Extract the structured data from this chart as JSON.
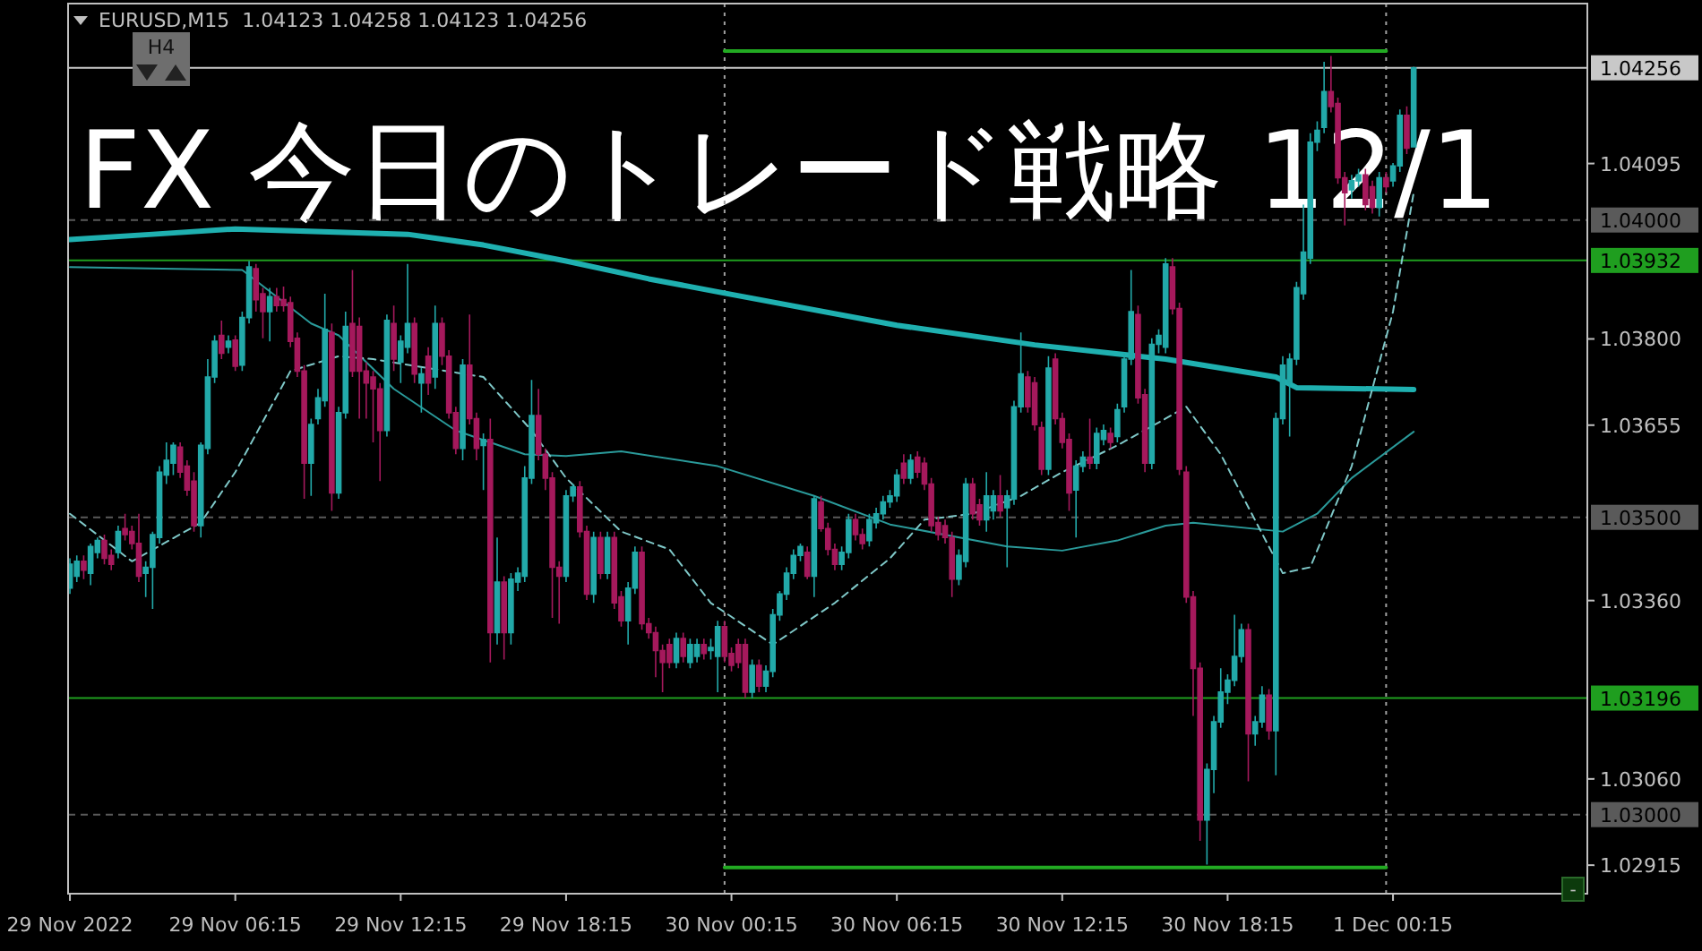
{
  "chart_data": {
    "type": "candlestick",
    "title": "FX 今日のトレード戦略 12/1",
    "annotations": [
      "EURUSD,M15  1.04123 1.04258 1.04123 1.04256",
      "H4",
      "-"
    ],
    "colors": [
      "#22a9a9",
      "#22a9a9",
      "#a5195c",
      "#22a9a9",
      "#22a9a9",
      "#a5195c",
      "#a5195c",
      "#22a9a9",
      "#a5195c",
      "#a5195c",
      "#a5195c",
      "#22a9a9",
      "#22a9a9",
      "#22a9a9",
      "#22a9a9",
      "#22a9a9",
      "#a5195c",
      "#a5195c",
      "#a5195c",
      "#22a9a9",
      "#22a9a9",
      "#22a9a9",
      "#a5195c",
      "#22a9a9",
      "#a5195c",
      "#22a9a9",
      "#22a9a9",
      "#a5195c",
      "#a5195c",
      "#22a9a9",
      "#a5195c",
      "#a5195c",
      "#a5195c",
      "#a5195c",
      "#a5195c",
      "#22a9a9",
      "#22a9a9",
      "#22a9a9",
      "#a5195c",
      "#22a9a9",
      "#22a9a9",
      "#a5195c",
      "#a5195c",
      "#a5195c",
      "#a5195c",
      "#a5195c",
      "#22a9a9",
      "#a5195c",
      "#22a9a9",
      "#22a9a9",
      "#a5195c",
      "#22a9a9",
      "#a5195c",
      "#22a9a9",
      "#a5195c",
      "#a5195c",
      "#a5195c",
      "#22a9a9",
      "#a5195c",
      "#a5195c",
      "#22a9a9",
      "#a5195c",
      "#22a9a9",
      "#a5195c",
      "#22a9a9",
      "#22a9a9",
      "#22a9a9",
      "#22a9a9",
      "#a5195c",
      "#a5195c",
      "#a5195c",
      "#a5195c",
      "#22a9a9",
      "#22a9a9",
      "#a5195c",
      "#a5195c",
      "#22a9a9",
      "#a5195c",
      "#22a9a9",
      "#a5195c",
      "#a5195c",
      "#22a9a9",
      "#22a9a9",
      "#a5195c",
      "#a5195c",
      "#a5195c",
      "#a5195c",
      "#a5195c",
      "#22a9a9",
      "#a5195c",
      "#22a9a9",
      "#22a9a9",
      "#a5195c",
      "#22a9a9",
      "#22a9a9",
      "#a5195c",
      "#a5195c",
      "#a5195c",
      "#a5195c",
      "#22a9a9",
      "#a5195c",
      "#22a9a9",
      "#22a9a9",
      "#22a9a9",
      "#22a9a9",
      "#22a9a9",
      "#22a9a9",
      "#a5195c",
      "#22a9a9",
      "#a5195c",
      "#a5195c",
      "#a5195c",
      "#22a9a9",
      "#22a9a9",
      "#a5195c",
      "#a5195c",
      "#22a9a9",
      "#22a9a9",
      "#22a9a9",
      "#22a9a9",
      "#22a9a9",
      "#a5195c",
      "#22a9a9",
      "#a5195c",
      "#a5195c",
      "#a5195c",
      "#a5195c",
      "#a5195c",
      "#a5195c",
      "#22a9a9",
      "#22a9a9",
      "#a5195c",
      "#a5195c",
      "#22a9a9",
      "#22a9a9",
      "#a5195c",
      "#22a9a9",
      "#22a9a9",
      "#22a9a9",
      "#a5195c",
      "#a5195c",
      "#a5195c",
      "#22a9a9",
      "#a5195c",
      "#a5195c",
      "#a5195c",
      "#22a9a9",
      "#22a9a9",
      "#a5195c",
      "#22a9a9",
      "#22a9a9",
      "#a5195c",
      "#22a9a9",
      "#22a9a9",
      "#22a9a9",
      "#a5195c",
      "#a5195c",
      "#22a9a9",
      "#22a9a9",
      "#22a9a9",
      "#a5195c",
      "#a5195c",
      "#a5195c",
      "#a5195c",
      "#a5195c",
      "#22a9a9",
      "#22a9a9",
      "#22a9a9",
      "#22a9a9",
      "#22a9a9",
      "#22a9a9",
      "#a5195c",
      "#22a9a9",
      "#22a9a9",
      "#a5195c",
      "#22a9a9",
      "#22a9a9",
      "#22a9a9",
      "#22a9a9",
      "#22a9a9",
      "#22a9a9",
      "#22a9a9",
      "#22a9a9",
      "#a5195c",
      "#a5195c",
      "#a5195c",
      "#22a9a9",
      "#22a9a9",
      "#a5195c",
      "#a5195c",
      "#22a9a9",
      "#a5195c",
      "#22a9a9",
      "#22a9a9",
      "#a5195c",
      "#22a9a9"
    ],
    "xlim": [
      "2022-11-29T00:11",
      "2022-12-01T07:18"
    ],
    "xticks": [
      {
        "value": "2022-11-29T00:15",
        "label": "29 Nov 2022"
      },
      {
        "value": "2022-11-29T06:15",
        "label": "29 Nov 06:15"
      },
      {
        "value": "2022-11-29T12:15",
        "label": "29 Nov 12:15"
      },
      {
        "value": "2022-11-29T18:15",
        "label": "29 Nov 18:15"
      },
      {
        "value": "2022-11-30T00:15",
        "label": "30 Nov 00:15"
      },
      {
        "value": "2022-11-30T06:15",
        "label": "30 Nov 06:15"
      },
      {
        "value": "2022-11-30T12:15",
        "label": "30 Nov 12:15"
      },
      {
        "value": "2022-11-30T18:15",
        "label": "30 Nov 18:15"
      },
      {
        "value": "2022-12-01T00:15",
        "label": "1 Dec 00:15"
      }
    ],
    "ylim": [
      1.02867,
      1.04364
    ],
    "yticks": [
      {
        "value": 1.04095,
        "label": "1.04095"
      },
      {
        "value": 1.038,
        "label": "1.03800"
      },
      {
        "value": 1.03655,
        "label": "1.03655"
      },
      {
        "value": 1.0336,
        "label": "1.03360"
      },
      {
        "value": 1.0306,
        "label": "1.03060"
      },
      {
        "value": 1.02915,
        "label": "1.02915"
      }
    ],
    "ref_lines": [
      {
        "axis": "x",
        "value": "2022-11-30T00:00",
        "color": "#a0a0a0",
        "line_style": "dotted"
      },
      {
        "axis": "x",
        "value": "2022-12-01T00:00",
        "color": "#a0a0a0",
        "line_style": "dotted"
      },
      {
        "axis": "y",
        "value": 1.04,
        "label": "1.04000",
        "color": "#5a5a5a",
        "line_style": "dashed"
      },
      {
        "axis": "y",
        "value": 1.035,
        "label": "1.03500",
        "color": "#5a5a5a",
        "line_style": "dashed"
      },
      {
        "axis": "y",
        "value": 1.03,
        "label": "1.03000",
        "color": "#5a5a5a",
        "line_style": "dashed"
      },
      {
        "axis": "y",
        "value": 1.03932,
        "label": "1.03932",
        "color": "#1f9e1f",
        "line_style": "solid"
      },
      {
        "axis": "y",
        "value": 1.03196,
        "label": "1.03196",
        "color": "#1f9e1f",
        "line_style": "solid"
      },
      {
        "axis": "y",
        "value": 1.04256,
        "label": "1.04256",
        "color": "#c8c8c8",
        "line_style": "solid"
      }
    ],
    "series": [
      {
        "type": "line",
        "color": "#1fb0b0",
        "x": [
          "2022-11-29T00:15",
          "2022-11-29T03:15",
          "2022-11-29T06:15",
          "2022-11-29T12:30",
          "2022-11-29T15:15",
          "2022-11-29T18:15",
          "2022-11-29T21:15",
          "2022-11-30T00:00",
          "2022-11-30T06:15",
          "2022-11-30T11:15",
          "2022-11-30T16:00",
          "2022-11-30T20:00",
          "2022-11-30T20:45",
          "2022-12-01T01:00"
        ],
        "values": [
          1.03967,
          1.03976,
          1.03985,
          1.03976,
          1.03958,
          1.03931,
          1.03901,
          1.03877,
          1.03823,
          1.0379,
          1.03766,
          1.03736,
          1.03718,
          1.03715
        ]
      },
      {
        "type": "line",
        "color": "#2a9a9a",
        "x": [
          "2022-11-29T00:15",
          "2022-11-29T06:30",
          "2022-11-29T09:00",
          "2022-11-29T10:00",
          "2022-11-29T12:00",
          "2022-11-29T14:15",
          "2022-11-29T16:45",
          "2022-11-29T18:15",
          "2022-11-29T20:15",
          "2022-11-29T23:45",
          "2022-11-30T03:15",
          "2022-11-30T06:00",
          "2022-11-30T10:15",
          "2022-11-30T12:15",
          "2022-11-30T14:15",
          "2022-11-30T16:00",
          "2022-11-30T17:00",
          "2022-11-30T20:15",
          "2022-11-30T21:30",
          "2022-11-30T22:45",
          "2022-12-01T01:00"
        ],
        "values": [
          1.03921,
          1.03916,
          1.03826,
          1.03806,
          1.03716,
          1.03646,
          1.03606,
          1.03603,
          1.03611,
          1.03586,
          1.03536,
          1.03488,
          1.03451,
          1.03444,
          1.03461,
          1.03486,
          1.03491,
          1.03476,
          1.03506,
          1.03566,
          1.03644
        ]
      },
      {
        "type": "line",
        "color": "#7fc8c8",
        "line_style": "dashed",
        "x": [
          "2022-11-29T00:15",
          "2022-11-29T02:30",
          "2022-11-29T05:00",
          "2022-11-29T06:15",
          "2022-11-29T08:15",
          "2022-11-29T10:00",
          "2022-11-29T11:15",
          "2022-11-29T15:15",
          "2022-11-29T17:00",
          "2022-11-29T18:15",
          "2022-11-29T20:15",
          "2022-11-29T22:00",
          "2022-11-29T23:30",
          "2022-11-30T01:45",
          "2022-11-30T04:00",
          "2022-11-30T06:00",
          "2022-11-30T07:15",
          "2022-11-30T09:00",
          "2022-11-30T10:45",
          "2022-11-30T12:15",
          "2022-11-30T14:15",
          "2022-11-30T16:00",
          "2022-11-30T16:45",
          "2022-11-30T18:00",
          "2022-11-30T20:15",
          "2022-11-30T21:15",
          "2022-11-30T22:45",
          "2022-12-01T00:15",
          "2022-12-01T01:00"
        ],
        "values": [
          1.03506,
          1.03426,
          1.03491,
          1.03576,
          1.03746,
          1.03771,
          1.03766,
          1.03736,
          1.03646,
          1.03566,
          1.03476,
          1.03446,
          1.03356,
          1.03286,
          1.03356,
          1.03431,
          1.03496,
          1.03506,
          1.03536,
          1.03576,
          1.03621,
          1.03666,
          1.03686,
          1.03606,
          1.03406,
          1.03416,
          1.03586,
          1.03846,
          1.04046
        ]
      },
      {
        "type": "line",
        "color": "#22aa22",
        "x": [
          "2022-11-30T00:00",
          "2022-12-01T00:00"
        ],
        "values": [
          1.04284,
          1.04284
        ]
      },
      {
        "type": "line",
        "color": "#22aa22",
        "x": [
          "2022-11-30T00:00",
          "2022-12-01T00:00"
        ],
        "values": [
          1.02911,
          1.02911
        ]
      }
    ],
    "x": [
      "2022-11-29T00:15",
      "2022-11-29T00:30",
      "2022-11-29T00:45",
      "2022-11-29T01:00",
      "2022-11-29T01:15",
      "2022-11-29T01:30",
      "2022-11-29T01:45",
      "2022-11-29T02:00",
      "2022-11-29T02:15",
      "2022-11-29T02:30",
      "2022-11-29T02:45",
      "2022-11-29T03:00",
      "2022-11-29T03:15",
      "2022-11-29T03:30",
      "2022-11-29T03:45",
      "2022-11-29T04:00",
      "2022-11-29T04:15",
      "2022-11-29T04:30",
      "2022-11-29T04:45",
      "2022-11-29T05:00",
      "2022-11-29T05:15",
      "2022-11-29T05:30",
      "2022-11-29T05:45",
      "2022-11-29T06:00",
      "2022-11-29T06:15",
      "2022-11-29T06:30",
      "2022-11-29T06:45",
      "2022-11-29T07:00",
      "2022-11-29T07:15",
      "2022-11-29T07:30",
      "2022-11-29T07:45",
      "2022-11-29T08:00",
      "2022-11-29T08:15",
      "2022-11-29T08:30",
      "2022-11-29T08:45",
      "2022-11-29T09:00",
      "2022-11-29T09:15",
      "2022-11-29T09:30",
      "2022-11-29T09:45",
      "2022-11-29T10:00",
      "2022-11-29T10:15",
      "2022-11-29T10:30",
      "2022-11-29T10:45",
      "2022-11-29T11:00",
      "2022-11-29T11:15",
      "2022-11-29T11:30",
      "2022-11-29T11:45",
      "2022-11-29T12:00",
      "2022-11-29T12:15",
      "2022-11-29T12:30",
      "2022-11-29T12:45",
      "2022-11-29T13:00",
      "2022-11-29T13:15",
      "2022-11-29T13:30",
      "2022-11-29T13:45",
      "2022-11-29T14:00",
      "2022-11-29T14:15",
      "2022-11-29T14:30",
      "2022-11-29T14:45",
      "2022-11-29T15:00",
      "2022-11-29T15:15",
      "2022-11-29T15:30",
      "2022-11-29T15:45",
      "2022-11-29T16:00",
      "2022-11-29T16:15",
      "2022-11-29T16:30",
      "2022-11-29T16:45",
      "2022-11-29T17:00",
      "2022-11-29T17:15",
      "2022-11-29T17:30",
      "2022-11-29T17:45",
      "2022-11-29T18:00",
      "2022-11-29T18:15",
      "2022-11-29T18:30",
      "2022-11-29T18:45",
      "2022-11-29T19:00",
      "2022-11-29T19:15",
      "2022-11-29T19:30",
      "2022-11-29T19:45",
      "2022-11-29T20:00",
      "2022-11-29T20:15",
      "2022-11-29T20:30",
      "2022-11-29T20:45",
      "2022-11-29T21:00",
      "2022-11-29T21:15",
      "2022-11-29T21:30",
      "2022-11-29T21:45",
      "2022-11-29T22:00",
      "2022-11-29T22:15",
      "2022-11-29T22:30",
      "2022-11-29T22:45",
      "2022-11-29T23:00",
      "2022-11-29T23:15",
      "2022-11-29T23:30",
      "2022-11-29T23:45",
      "2022-11-30T00:00",
      "2022-11-30T00:15",
      "2022-11-30T00:30",
      "2022-11-30T00:45",
      "2022-11-30T01:00",
      "2022-11-30T01:15",
      "2022-11-30T01:30",
      "2022-11-30T01:45",
      "2022-11-30T02:00",
      "2022-11-30T02:15",
      "2022-11-30T02:30",
      "2022-11-30T02:45",
      "2022-11-30T03:00",
      "2022-11-30T03:15",
      "2022-11-30T03:30",
      "2022-11-30T03:45",
      "2022-11-30T04:00",
      "2022-11-30T04:15",
      "2022-11-30T04:30",
      "2022-11-30T04:45",
      "2022-11-30T05:00",
      "2022-11-30T05:15",
      "2022-11-30T05:30",
      "2022-11-30T05:45",
      "2022-11-30T06:00",
      "2022-11-30T06:15",
      "2022-11-30T06:30",
      "2022-11-30T06:45",
      "2022-11-30T07:00",
      "2022-11-30T07:15",
      "2022-11-30T07:30",
      "2022-11-30T07:45",
      "2022-11-30T08:00",
      "2022-11-30T08:15",
      "2022-11-30T08:30",
      "2022-11-30T08:45",
      "2022-11-30T09:00",
      "2022-11-30T09:15",
      "2022-11-30T09:30",
      "2022-11-30T09:45",
      "2022-11-30T10:00",
      "2022-11-30T10:15",
      "2022-11-30T10:30",
      "2022-11-30T10:45",
      "2022-11-30T11:00",
      "2022-11-30T11:15",
      "2022-11-30T11:30",
      "2022-11-30T11:45",
      "2022-11-30T12:00",
      "2022-11-30T12:15",
      "2022-11-30T12:30",
      "2022-11-30T12:45",
      "2022-11-30T13:00",
      "2022-11-30T13:15",
      "2022-11-30T13:30",
      "2022-11-30T13:45",
      "2022-11-30T14:00",
      "2022-11-30T14:15",
      "2022-11-30T14:30",
      "2022-11-30T14:45",
      "2022-11-30T15:00",
      "2022-11-30T15:15",
      "2022-11-30T15:30",
      "2022-11-30T15:45",
      "2022-11-30T16:00",
      "2022-11-30T16:15",
      "2022-11-30T16:30",
      "2022-11-30T16:45",
      "2022-11-30T17:00",
      "2022-11-30T17:15",
      "2022-11-30T17:30",
      "2022-11-30T17:45",
      "2022-11-30T18:00",
      "2022-11-30T18:15",
      "2022-11-30T18:30",
      "2022-11-30T18:45",
      "2022-11-30T19:00",
      "2022-11-30T19:15",
      "2022-11-30T19:30",
      "2022-11-30T19:45",
      "2022-11-30T20:00",
      "2022-11-30T20:15",
      "2022-11-30T20:30",
      "2022-11-30T20:45",
      "2022-11-30T21:00",
      "2022-11-30T21:15",
      "2022-11-30T21:30",
      "2022-11-30T21:45",
      "2022-11-30T22:00",
      "2022-11-30T22:15",
      "2022-11-30T22:30",
      "2022-11-30T22:45",
      "2022-11-30T23:00",
      "2022-11-30T23:15",
      "2022-11-30T23:30",
      "2022-11-30T23:45",
      "2022-12-01T00:00",
      "2022-12-01T00:15",
      "2022-12-01T00:30",
      "2022-12-01T00:45",
      "2022-12-01T01:00"
    ],
    "ohlc": [
      [
        1.03381,
        1.03431,
        1.03371,
        1.03421
      ],
      [
        1.03401,
        1.03436,
        1.03391,
        1.03426
      ],
      [
        1.03426,
        1.03436,
        1.03396,
        1.03411
      ],
      [
        1.03406,
        1.03456,
        1.03386,
        1.03451
      ],
      [
        1.03441,
        1.03466,
        1.03431,
        1.03461
      ],
      [
        1.03461,
        1.03471,
        1.03421,
        1.03431
      ],
      [
        1.03436,
        1.03446,
        1.03411,
        1.03421
      ],
      [
        1.03441,
        1.03486,
        1.03431,
        1.03476
      ],
      [
        1.03481,
        1.03506,
        1.03461,
        1.03471
      ],
      [
        1.03476,
        1.03486,
        1.03446,
        1.03456
      ],
      [
        1.03456,
        1.03506,
        1.03391,
        1.03401
      ],
      [
        1.03406,
        1.03426,
        1.03366,
        1.03416
      ],
      [
        1.03416,
        1.03476,
        1.03346,
        1.03471
      ],
      [
        1.03466,
        1.03586,
        1.03456,
        1.03576
      ],
      [
        1.03571,
        1.03626,
        1.03556,
        1.03596
      ],
      [
        1.03591,
        1.03626,
        1.03571,
        1.03621
      ],
      [
        1.03618,
        1.03626,
        1.03566,
        1.03576
      ],
      [
        1.03586,
        1.03596,
        1.03536,
        1.03546
      ],
      [
        1.03561,
        1.03576,
        1.03476,
        1.03486
      ],
      [
        1.03486,
        1.03626,
        1.03466,
        1.03621
      ],
      [
        1.03616,
        1.03766,
        1.03606,
        1.03736
      ],
      [
        1.03736,
        1.03806,
        1.03726,
        1.03796
      ],
      [
        1.03806,
        1.03831,
        1.03766,
        1.03776
      ],
      [
        1.03786,
        1.03806,
        1.03776,
        1.03796
      ],
      [
        1.03798,
        1.03806,
        1.03746,
        1.03754
      ],
      [
        1.03756,
        1.03846,
        1.03746,
        1.03836
      ],
      [
        1.03836,
        1.03931,
        1.03826,
        1.03921
      ],
      [
        1.03918,
        1.03926,
        1.03846,
        1.03866
      ],
      [
        1.03876,
        1.03886,
        1.03801,
        1.03846
      ],
      [
        1.03846,
        1.03886,
        1.03796,
        1.03871
      ],
      [
        1.03871,
        1.03886,
        1.03846,
        1.03856
      ],
      [
        1.03866,
        1.03888,
        1.03846,
        1.03856
      ],
      [
        1.03861,
        1.03871,
        1.03786,
        1.03796
      ],
      [
        1.03801,
        1.03811,
        1.03736,
        1.03746
      ],
      [
        1.03746,
        1.03756,
        1.03531,
        1.03591
      ],
      [
        1.03591,
        1.03666,
        1.03536,
        1.03656
      ],
      [
        1.03666,
        1.03716,
        1.03656,
        1.03701
      ],
      [
        1.03696,
        1.03876,
        1.03686,
        1.03816
      ],
      [
        1.03811,
        1.03826,
        1.03511,
        1.03541
      ],
      [
        1.03541,
        1.03686,
        1.03531,
        1.03676
      ],
      [
        1.03676,
        1.03846,
        1.03666,
        1.03821
      ],
      [
        1.03826,
        1.03916,
        1.03736,
        1.03746
      ],
      [
        1.03821,
        1.03836,
        1.03666,
        1.03746
      ],
      [
        1.03746,
        1.03761,
        1.03666,
        1.03726
      ],
      [
        1.03736,
        1.03746,
        1.03626,
        1.03716
      ],
      [
        1.03716,
        1.03726,
        1.03561,
        1.03646
      ],
      [
        1.03646,
        1.03841,
        1.03636,
        1.03831
      ],
      [
        1.03826,
        1.03856,
        1.03746,
        1.03766
      ],
      [
        1.03761,
        1.03806,
        1.03726,
        1.03796
      ],
      [
        1.03786,
        1.03926,
        1.03776,
        1.03826
      ],
      [
        1.03826,
        1.03836,
        1.03726,
        1.03741
      ],
      [
        1.03726,
        1.03751,
        1.03676,
        1.03741
      ],
      [
        1.03771,
        1.03786,
        1.03706,
        1.03726
      ],
      [
        1.03736,
        1.03856,
        1.03716,
        1.03826
      ],
      [
        1.03826,
        1.03836,
        1.03756,
        1.03771
      ],
      [
        1.03771,
        1.03781,
        1.03666,
        1.03676
      ],
      [
        1.03676,
        1.03686,
        1.03606,
        1.03616
      ],
      [
        1.03616,
        1.03766,
        1.03596,
        1.03756
      ],
      [
        1.03756,
        1.03841,
        1.03656,
        1.03666
      ],
      [
        1.03666,
        1.03676,
        1.03596,
        1.03616
      ],
      [
        1.03621,
        1.03641,
        1.03546,
        1.03631
      ],
      [
        1.03631,
        1.03666,
        1.03256,
        1.03306
      ],
      [
        1.03306,
        1.03466,
        1.03286,
        1.03391
      ],
      [
        1.03391,
        1.03401,
        1.03261,
        1.03306
      ],
      [
        1.03306,
        1.03406,
        1.03286,
        1.03396
      ],
      [
        1.03391,
        1.03416,
        1.03376,
        1.03406
      ],
      [
        1.03401,
        1.03586,
        1.03391,
        1.03566
      ],
      [
        1.03566,
        1.03731,
        1.03556,
        1.03671
      ],
      [
        1.03671,
        1.03716,
        1.03596,
        1.03606
      ],
      [
        1.03606,
        1.03616,
        1.03546,
        1.03566
      ],
      [
        1.03566,
        1.03576,
        1.03331,
        1.03416
      ],
      [
        1.03416,
        1.03426,
        1.03321,
        1.03401
      ],
      [
        1.03401,
        1.03546,
        1.03391,
        1.03536
      ],
      [
        1.03536,
        1.03556,
        1.03526,
        1.03551
      ],
      [
        1.03551,
        1.03561,
        1.03466,
        1.03476
      ],
      [
        1.03476,
        1.03486,
        1.03361,
        1.03371
      ],
      [
        1.03371,
        1.03476,
        1.03356,
        1.03466
      ],
      [
        1.03466,
        1.03476,
        1.03396,
        1.03406
      ],
      [
        1.03406,
        1.03476,
        1.03396,
        1.03466
      ],
      [
        1.03466,
        1.03476,
        1.03346,
        1.03356
      ],
      [
        1.03366,
        1.03376,
        1.03316,
        1.03326
      ],
      [
        1.03326,
        1.03391,
        1.03286,
        1.03381
      ],
      [
        1.03381,
        1.03451,
        1.03371,
        1.03441
      ],
      [
        1.03441,
        1.03451,
        1.03311,
        1.03321
      ],
      [
        1.03321,
        1.03331,
        1.03296,
        1.03306
      ],
      [
        1.03306,
        1.03316,
        1.03231,
        1.03276
      ],
      [
        1.03276,
        1.03286,
        1.03206,
        1.03256
      ],
      [
        1.03286,
        1.03296,
        1.03246,
        1.03256
      ],
      [
        1.03256,
        1.03306,
        1.03246,
        1.03296
      ],
      [
        1.03296,
        1.03306,
        1.03256,
        1.03266
      ],
      [
        1.03256,
        1.03296,
        1.03246,
        1.03286
      ],
      [
        1.03266,
        1.03296,
        1.03256,
        1.03286
      ],
      [
        1.03286,
        1.03296,
        1.03261,
        1.03271
      ],
      [
        1.03276,
        1.03296,
        1.03261,
        1.03281
      ],
      [
        1.03266,
        1.03326,
        1.03206,
        1.03316
      ],
      [
        1.03316,
        1.03326,
        1.03256,
        1.03266
      ],
      [
        1.03271,
        1.03281,
        1.03241,
        1.03251
      ],
      [
        1.03286,
        1.03296,
        1.03246,
        1.03256
      ],
      [
        1.03286,
        1.03296,
        1.03196,
        1.03206
      ],
      [
        1.03206,
        1.03261,
        1.03196,
        1.03251
      ],
      [
        1.03251,
        1.03261,
        1.03206,
        1.03216
      ],
      [
        1.03216,
        1.03251,
        1.03206,
        1.03241
      ],
      [
        1.03241,
        1.03346,
        1.03231,
        1.03336
      ],
      [
        1.03336,
        1.03376,
        1.03326,
        1.03371
      ],
      [
        1.03371,
        1.03416,
        1.03361,
        1.03406
      ],
      [
        1.03406,
        1.03446,
        1.03396,
        1.03436
      ],
      [
        1.03436,
        1.03456,
        1.03426,
        1.03451
      ],
      [
        1.03441,
        1.03451,
        1.03396,
        1.03401
      ],
      [
        1.03401,
        1.03536,
        1.03366,
        1.03531
      ],
      [
        1.03526,
        1.03536,
        1.03476,
        1.03481
      ],
      [
        1.03481,
        1.03491,
        1.03436,
        1.03446
      ],
      [
        1.03446,
        1.03456,
        1.03411,
        1.03421
      ],
      [
        1.03421,
        1.03451,
        1.03411,
        1.03441
      ],
      [
        1.03441,
        1.03506,
        1.03431,
        1.03496
      ],
      [
        1.03496,
        1.03506,
        1.03461,
        1.03471
      ],
      [
        1.03471,
        1.03481,
        1.03446,
        1.03456
      ],
      [
        1.03461,
        1.03506,
        1.03451,
        1.03496
      ],
      [
        1.03491,
        1.03516,
        1.03481,
        1.03506
      ],
      [
        1.03506,
        1.03536,
        1.03496,
        1.03526
      ],
      [
        1.03526,
        1.03546,
        1.03516,
        1.03536
      ],
      [
        1.03536,
        1.03581,
        1.03526,
        1.03571
      ],
      [
        1.03591,
        1.03606,
        1.03556,
        1.03566
      ],
      [
        1.03566,
        1.03606,
        1.03556,
        1.03596
      ],
      [
        1.03601,
        1.03611,
        1.03566,
        1.03576
      ],
      [
        1.03591,
        1.03601,
        1.03546,
        1.03556
      ],
      [
        1.03556,
        1.03566,
        1.03476,
        1.03486
      ],
      [
        1.03491,
        1.03501,
        1.03461,
        1.03471
      ],
      [
        1.03486,
        1.03496,
        1.03456,
        1.03466
      ],
      [
        1.03466,
        1.03476,
        1.03366,
        1.03396
      ],
      [
        1.03396,
        1.03446,
        1.03386,
        1.03436
      ],
      [
        1.03426,
        1.03566,
        1.03416,
        1.03556
      ],
      [
        1.03556,
        1.03566,
        1.03496,
        1.03506
      ],
      [
        1.03521,
        1.03531,
        1.03486,
        1.03496
      ],
      [
        1.03496,
        1.03576,
        1.03476,
        1.03536
      ],
      [
        1.03511,
        1.03546,
        1.03496,
        1.03536
      ],
      [
        1.03536,
        1.03571,
        1.03501,
        1.03511
      ],
      [
        1.03516,
        1.03546,
        1.03416,
        1.03536
      ],
      [
        1.03531,
        1.03696,
        1.03521,
        1.03686
      ],
      [
        1.03686,
        1.03811,
        1.03676,
        1.03741
      ],
      [
        1.03736,
        1.03746,
        1.03676,
        1.03686
      ],
      [
        1.03726,
        1.03736,
        1.03646,
        1.03656
      ],
      [
        1.03651,
        1.03661,
        1.03571,
        1.03581
      ],
      [
        1.03581,
        1.03771,
        1.03571,
        1.03751
      ],
      [
        1.03766,
        1.03776,
        1.03656,
        1.03666
      ],
      [
        1.03666,
        1.03676,
        1.03616,
        1.03626
      ],
      [
        1.03631,
        1.03641,
        1.03511,
        1.03541
      ],
      [
        1.03546,
        1.03596,
        1.03466,
        1.03586
      ],
      [
        1.03586,
        1.03611,
        1.03576,
        1.03601
      ],
      [
        1.03601,
        1.03666,
        1.03581,
        1.03591
      ],
      [
        1.03591,
        1.03651,
        1.03581,
        1.03641
      ],
      [
        1.03631,
        1.03656,
        1.03621,
        1.03646
      ],
      [
        1.03641,
        1.03651,
        1.03616,
        1.03626
      ],
      [
        1.03636,
        1.03691,
        1.03626,
        1.03681
      ],
      [
        1.03686,
        1.03776,
        1.03676,
        1.03766
      ],
      [
        1.03766,
        1.03916,
        1.03756,
        1.03846
      ],
      [
        1.03841,
        1.03856,
        1.03691,
        1.03701
      ],
      [
        1.03706,
        1.03716,
        1.03576,
        1.03591
      ],
      [
        1.03591,
        1.03801,
        1.03581,
        1.03791
      ],
      [
        1.03791,
        1.03816,
        1.03776,
        1.03806
      ],
      [
        1.03786,
        1.03936,
        1.03776,
        1.03926
      ],
      [
        1.03921,
        1.03936,
        1.03841,
        1.03851
      ],
      [
        1.03851,
        1.03861,
        1.03571,
        1.03581
      ],
      [
        1.03576,
        1.03586,
        1.03356,
        1.03366
      ],
      [
        1.03366,
        1.03376,
        1.03166,
        1.03246
      ],
      [
        1.03246,
        1.03256,
        1.02956,
        1.02991
      ],
      [
        1.02991,
        1.03086,
        1.02916,
        1.03076
      ],
      [
        1.03076,
        1.03166,
        1.03036,
        1.03156
      ],
      [
        1.03156,
        1.03246,
        1.03146,
        1.03206
      ],
      [
        1.03206,
        1.03236,
        1.03186,
        1.03226
      ],
      [
        1.03226,
        1.03336,
        1.03216,
        1.03266
      ],
      [
        1.03266,
        1.03321,
        1.03256,
        1.03311
      ],
      [
        1.03311,
        1.03321,
        1.03056,
        1.03136
      ],
      [
        1.03136,
        1.03166,
        1.03116,
        1.03156
      ],
      [
        1.03156,
        1.03216,
        1.03146,
        1.03201
      ],
      [
        1.03201,
        1.03211,
        1.03126,
        1.03141
      ],
      [
        1.03141,
        1.03676,
        1.03066,
        1.03666
      ],
      [
        1.03666,
        1.03771,
        1.03656,
        1.03756
      ],
      [
        1.03726,
        1.03776,
        1.03636,
        1.03766
      ],
      [
        1.03766,
        1.03896,
        1.03756,
        1.03886
      ],
      [
        1.03876,
        1.04026,
        1.03866,
        1.03946
      ],
      [
        1.03936,
        1.04146,
        1.03926,
        1.04131
      ],
      [
        1.04131,
        1.04166,
        1.04116,
        1.04151
      ],
      [
        1.04156,
        1.04266,
        1.04146,
        1.04216
      ],
      [
        1.04216,
        1.04276,
        1.04181,
        1.04191
      ],
      [
        1.04196,
        1.04206,
        1.04061,
        1.04071
      ],
      [
        1.04071,
        1.04081,
        1.03991,
        1.04046
      ],
      [
        1.04051,
        1.04076,
        1.04036,
        1.04066
      ],
      [
        1.04066,
        1.04086,
        1.04056,
        1.04076
      ],
      [
        1.04076,
        1.04086,
        1.04016,
        1.04026
      ],
      [
        1.04056,
        1.04066,
        1.04011,
        1.04021
      ],
      [
        1.04021,
        1.04081,
        1.04006,
        1.04071
      ],
      [
        1.04071,
        1.04081,
        1.04046,
        1.04056
      ],
      [
        1.04066,
        1.04096,
        1.04056,
        1.04091
      ],
      [
        1.04091,
        1.04186,
        1.04081,
        1.04176
      ],
      [
        1.04176,
        1.04191,
        1.04111,
        1.04121
      ],
      [
        1.04123,
        1.04258,
        1.04123,
        1.04256
      ]
    ]
  }
}
